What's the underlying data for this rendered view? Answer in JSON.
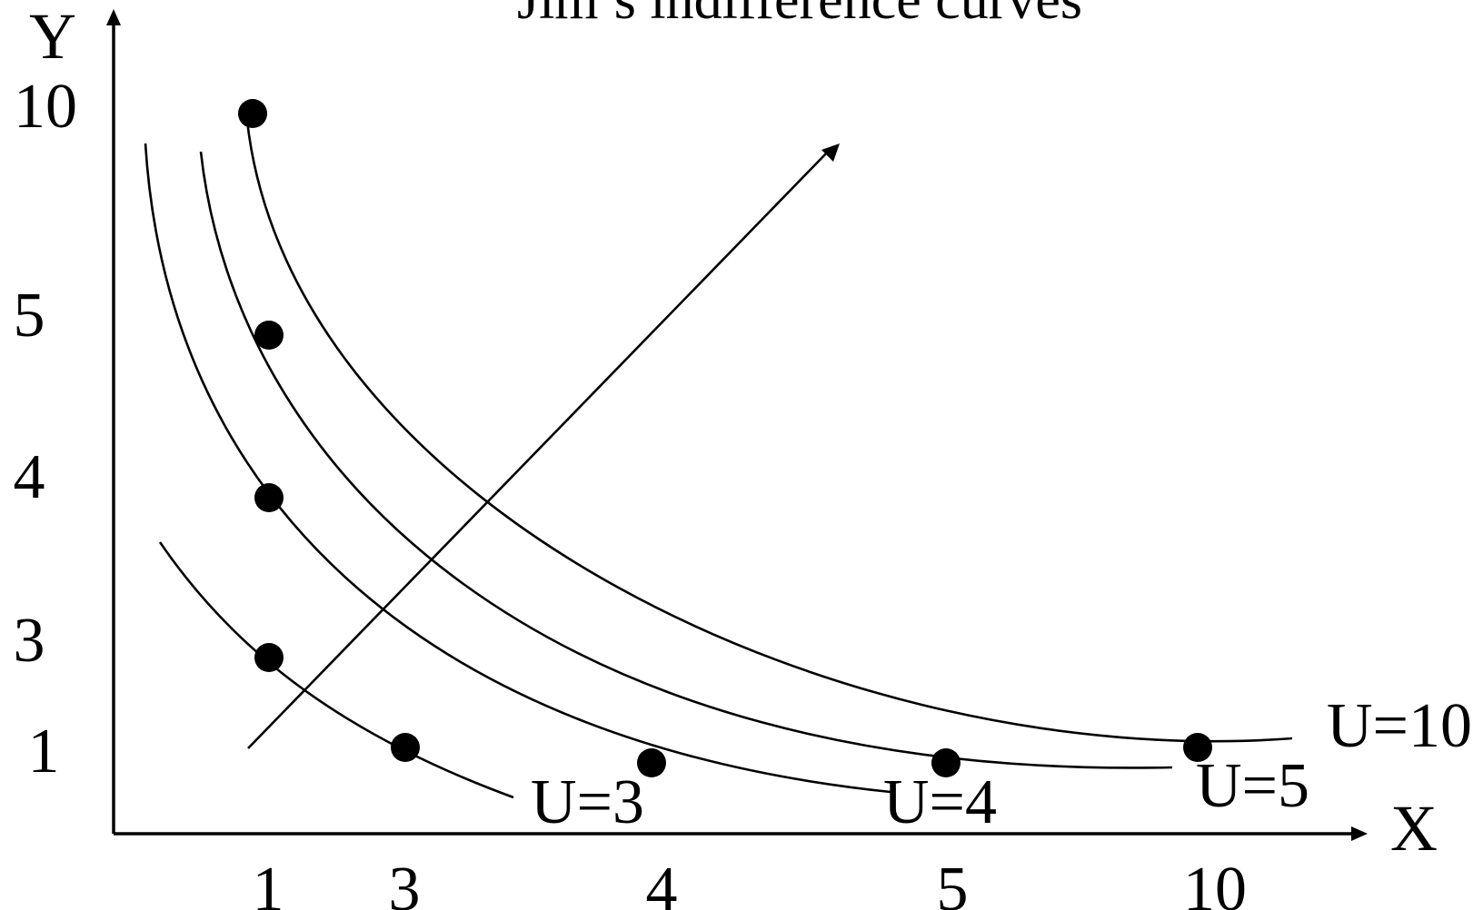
{
  "chart_data": {
    "type": "line",
    "title": "Jim’s indifference curves",
    "xlabel": "X",
    "ylabel": "Y",
    "x_ticks": [
      "1",
      "3",
      "4",
      "5",
      "10"
    ],
    "y_ticks": [
      "10",
      "5",
      "4",
      "3",
      "1"
    ],
    "scale": "ordinal",
    "grid": false,
    "series": [
      {
        "name": "U=3",
        "points": [
          [
            1,
            3
          ],
          [
            3,
            1
          ]
        ]
      },
      {
        "name": "U=4",
        "points": [
          [
            1,
            4
          ],
          [
            4,
            1
          ]
        ]
      },
      {
        "name": "U=5",
        "points": [
          [
            1,
            5
          ],
          [
            5,
            1
          ]
        ]
      },
      {
        "name": "U=10",
        "points": [
          [
            1,
            10
          ],
          [
            10,
            1
          ]
        ]
      }
    ],
    "annotations": [
      "arrow pointing up-right toward higher utility"
    ]
  },
  "colors": {
    "foreground": "#000000",
    "background": "#ffffff"
  }
}
